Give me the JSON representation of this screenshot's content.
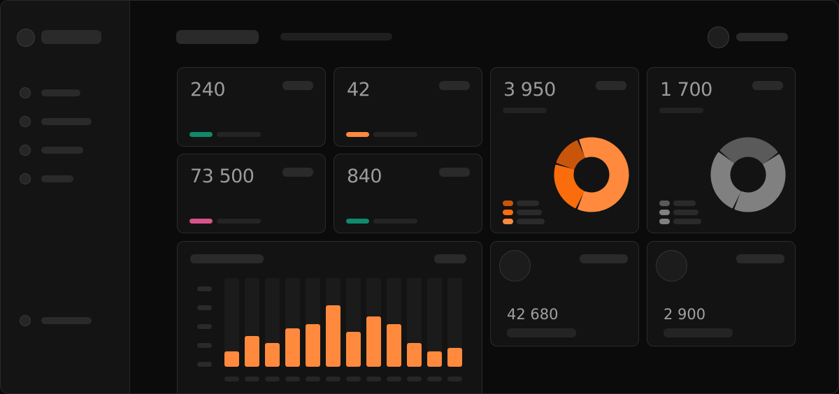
{
  "sidebar": {
    "items": [
      {
        "icon": "nav-icon"
      },
      {
        "icon": "nav-icon"
      },
      {
        "icon": "nav-icon"
      },
      {
        "icon": "nav-icon"
      }
    ],
    "footer_item": {
      "icon": "settings-icon"
    }
  },
  "stats": [
    {
      "value": "240",
      "indicator_color": "#0f8a6a"
    },
    {
      "value": "42",
      "indicator_color": "#ff8a3d"
    },
    {
      "value": "73 500",
      "indicator_color": "#d9538a"
    },
    {
      "value": "840",
      "indicator_color": "#0f8a6a"
    }
  ],
  "donut_cards": [
    {
      "value": "3 950",
      "segments": [
        {
          "value": 62,
          "color": "#ff8a3d"
        },
        {
          "value": 22,
          "color": "#fa6c0c"
        },
        {
          "value": 13,
          "color": "#c9550a"
        }
      ],
      "legend_colors": [
        "#c9550a",
        "#fa6c0c",
        "#ff8a3d"
      ]
    },
    {
      "value": "1 700",
      "segments": [
        {
          "value": 28,
          "color": "#5a5a5a"
        },
        {
          "value": 40,
          "color": "#808080"
        },
        {
          "value": 28,
          "color": "#808080"
        }
      ],
      "legend_colors": [
        "#5a5a5a",
        "#808080",
        "#808080"
      ]
    }
  ],
  "mini_cards": [
    {
      "value": "42 680"
    },
    {
      "value": "2 900"
    }
  ],
  "chart_data": {
    "type": "bar",
    "values": [
      17,
      35,
      27,
      43,
      48,
      69,
      39,
      57,
      48,
      27,
      17,
      21
    ],
    "ylim": [
      0,
      100
    ],
    "bar_color": "#ff8a3d",
    "track_color": "#1b1b1b"
  }
}
